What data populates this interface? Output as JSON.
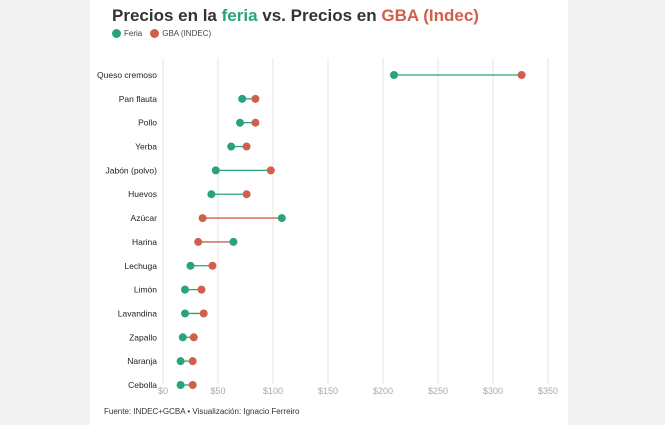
{
  "title": {
    "part1": "Precios en la ",
    "feria_word": "feria",
    "part2": " vs. Precios en ",
    "gba_word": "GBA (Indec)"
  },
  "legend": {
    "feria": "Feria",
    "gba": "GBA (INDEC)"
  },
  "source": "Fuente: INDEC+GCBA • Visualización: Ignacio Ferreiro",
  "colors": {
    "feria": "#2aa37a",
    "gba": "#d0604c"
  },
  "chart_data": {
    "type": "dumbbell",
    "title": "Precios en la feria vs. Precios en GBA (Indec)",
    "xlim": [
      0,
      350
    ],
    "x_ticks": [
      0,
      50,
      100,
      150,
      200,
      250,
      300,
      350
    ],
    "x_tick_labels": [
      "$0",
      "$50",
      "$100",
      "$150",
      "$200",
      "$250",
      "$300",
      "$350"
    ],
    "grid": "vertical",
    "legend_position": "top-left",
    "series_names": [
      "Feria",
      "GBA (INDEC)"
    ],
    "categories": [
      "Queso cremoso",
      "Pan flauta",
      "Pollo",
      "Yerba",
      "Jabón (polvo)",
      "Huevos",
      "Azúcar",
      "Harina",
      "Lechuga",
      "Limón",
      "Lavandina",
      "Zapallo",
      "Naranja",
      "Cebolla"
    ],
    "feria": [
      210,
      72,
      70,
      62,
      48,
      44,
      108,
      64,
      25,
      20,
      20,
      18,
      16,
      16
    ],
    "gba": [
      326,
      84,
      84,
      76,
      98,
      76,
      36,
      32,
      45,
      35,
      37,
      28,
      27,
      27
    ]
  }
}
